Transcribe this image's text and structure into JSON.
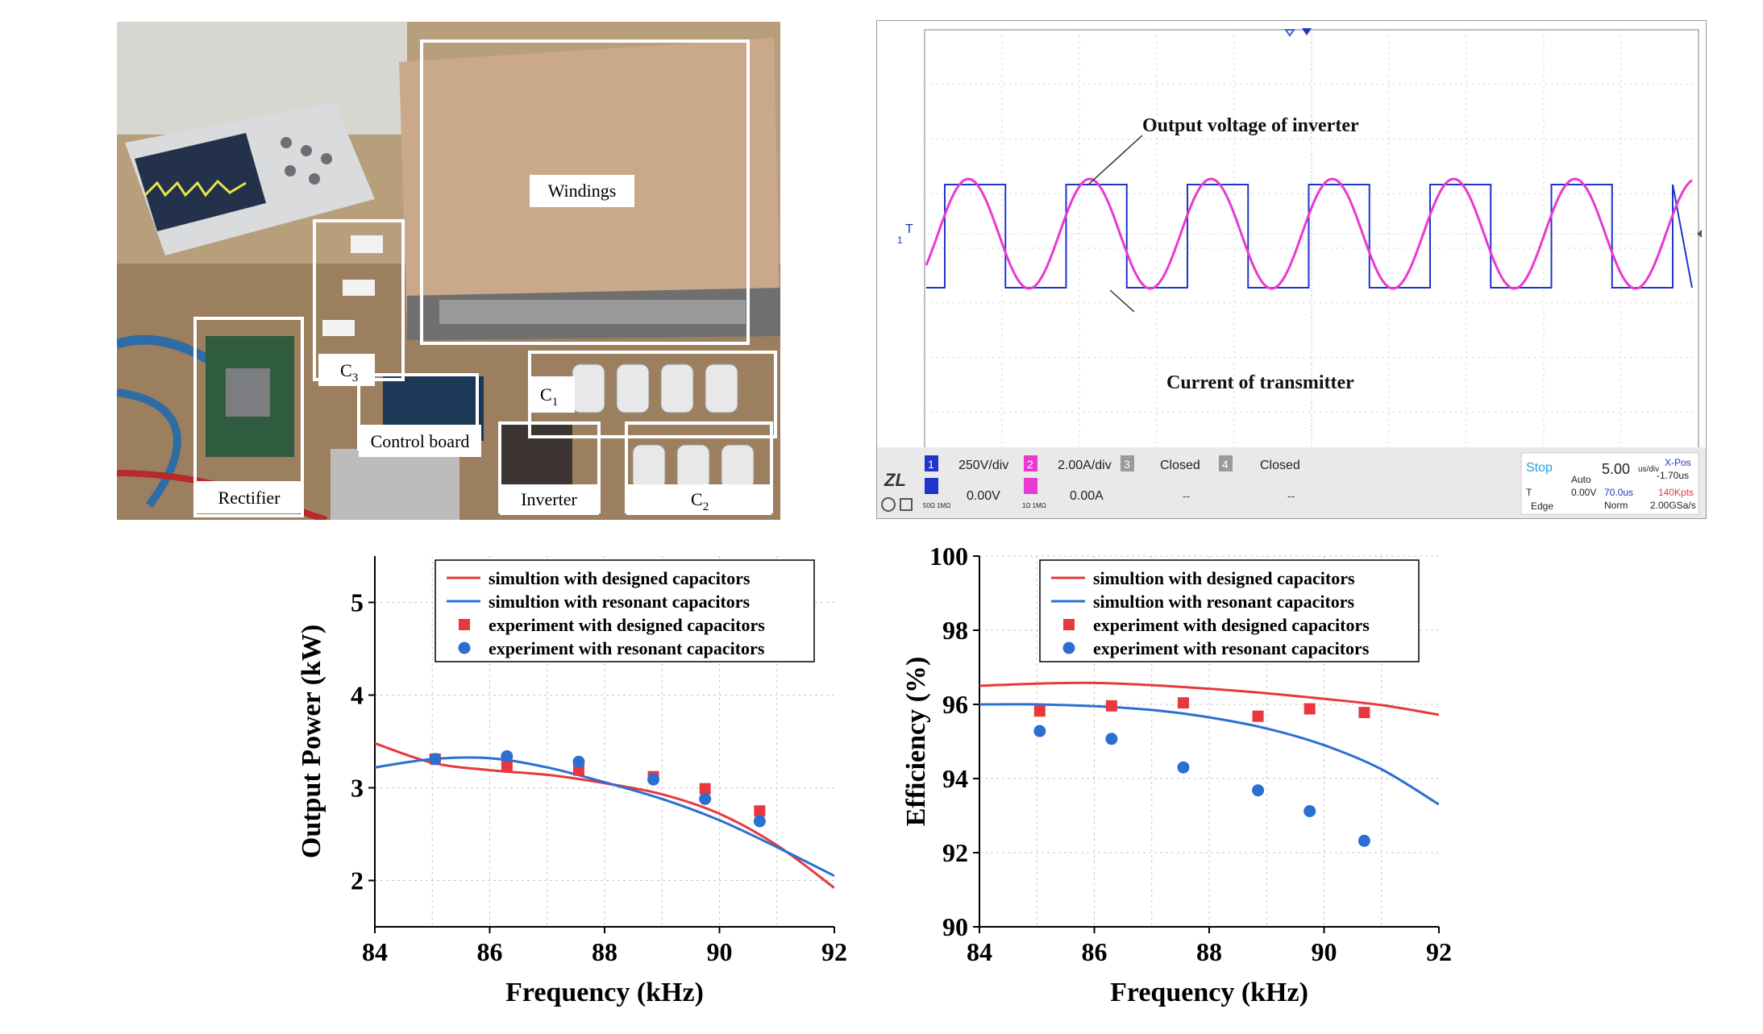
{
  "photo": {
    "labels": {
      "windings": "Windings",
      "c3": "C",
      "c3_sub": "3",
      "c1": "C",
      "c1_sub": "1",
      "c2": "C",
      "c2_sub": "2",
      "control_board": "Control board",
      "rectifier": "Rectifier",
      "inverter": "Inverter"
    }
  },
  "scope": {
    "annotations": {
      "voltage": "Output voltage of inverter",
      "current": "Current of transmitter"
    },
    "trigger_marker": "T",
    "ch1_marker": "1",
    "status": {
      "ch1_num": "1",
      "ch1_scale": "250V/div",
      "ch1_offset": "0.00V",
      "ch1_coupling": "50Ω\n1MΩ",
      "ch2_num": "2",
      "ch2_scale": "2.00A/div",
      "ch2_offset": "0.00A",
      "ch2_coupling": "1Ω\n1MΩ",
      "ch3_num": "3",
      "ch3_state": "Closed",
      "ch3_dash": "--",
      "ch4_num": "4",
      "ch4_state": "Closed",
      "ch4_dash": "--",
      "run_state": "Stop",
      "mode": "Auto",
      "trig_label": "T",
      "trig_level": "0.00V",
      "edge": "Edge",
      "timebase": "5.00",
      "timebase_unit": "us/div",
      "xpos_label": "X-Pos",
      "xpos_value": "-1.70us",
      "delay": "70.0us",
      "points": "140Kpts",
      "acq": "Norm",
      "rate": "2.00GSa/s"
    },
    "colors": {
      "ch1": "#1f35c9",
      "ch2": "#e83ad0",
      "grid": "#c8c8c8"
    }
  },
  "chart_data": [
    {
      "type": "line",
      "xlabel": "Frequency (kHz)",
      "ylabel": "Output Power (kW)",
      "xlim": [
        84,
        92
      ],
      "ylim": [
        1.5,
        5.5
      ],
      "xticks": [
        "84",
        "86",
        "88",
        "90",
        "92"
      ],
      "yticks": [
        "2",
        "3",
        "4",
        "5"
      ],
      "legend_position": "top-right",
      "series": [
        {
          "name": "simultion with designed capacitors",
          "kind": "line",
          "color": "#e8383d",
          "x": [
            84,
            85,
            86,
            87,
            88,
            89,
            90,
            91,
            92
          ],
          "y": [
            3.48,
            3.27,
            3.19,
            3.14,
            3.05,
            2.93,
            2.72,
            2.38,
            1.92
          ]
        },
        {
          "name": "simultion with resonant capacitors",
          "kind": "line",
          "color": "#2a6fd1",
          "x": [
            84,
            85,
            86,
            87,
            88,
            89,
            90,
            91,
            92
          ],
          "y": [
            3.22,
            3.31,
            3.32,
            3.22,
            3.06,
            2.88,
            2.65,
            2.36,
            2.05
          ]
        },
        {
          "name": "experiment with designed capacitors",
          "kind": "square",
          "color": "#e8383d",
          "x": [
            85.05,
            86.3,
            87.55,
            88.85,
            89.75,
            90.7
          ],
          "y": [
            3.31,
            3.24,
            3.19,
            3.12,
            2.99,
            2.75
          ]
        },
        {
          "name": "experiment with resonant capacitors",
          "kind": "circle",
          "color": "#2a6fd1",
          "x": [
            85.05,
            86.3,
            87.55,
            88.85,
            89.75,
            90.7
          ],
          "y": [
            3.31,
            3.34,
            3.28,
            3.09,
            2.88,
            2.64
          ]
        }
      ]
    },
    {
      "type": "line",
      "xlabel": "Frequency (kHz)",
      "ylabel": "Efficiency (%)",
      "xlim": [
        84,
        92
      ],
      "ylim": [
        90,
        100
      ],
      "xticks": [
        "84",
        "86",
        "88",
        "90",
        "92"
      ],
      "yticks": [
        "90",
        "92",
        "94",
        "96",
        "98",
        "100"
      ],
      "legend_position": "top-right",
      "series": [
        {
          "name": "simultion with designed capacitors",
          "kind": "line",
          "color": "#e8383d",
          "x": [
            84,
            85,
            86,
            87,
            88,
            89,
            90,
            91,
            92
          ],
          "y": [
            96.5,
            96.56,
            96.58,
            96.52,
            96.42,
            96.3,
            96.15,
            95.98,
            95.72
          ]
        },
        {
          "name": "simultion with resonant capacitors",
          "kind": "line",
          "color": "#2a6fd1",
          "x": [
            84,
            85,
            86,
            87,
            88,
            89,
            90,
            91,
            92
          ],
          "y": [
            96.0,
            96.0,
            95.95,
            95.85,
            95.65,
            95.35,
            94.9,
            94.25,
            93.3
          ]
        },
        {
          "name": "experiment with designed capacitors",
          "kind": "square",
          "color": "#e8383d",
          "x": [
            85.05,
            86.3,
            87.55,
            88.85,
            89.75,
            90.7
          ],
          "y": [
            95.82,
            95.96,
            96.04,
            95.68,
            95.88,
            95.78
          ]
        },
        {
          "name": "experiment with resonant capacitors",
          "kind": "circle",
          "color": "#2a6fd1",
          "x": [
            85.05,
            86.3,
            87.55,
            88.85,
            89.75,
            90.7
          ],
          "y": [
            95.28,
            95.07,
            94.3,
            93.68,
            93.12,
            92.32
          ]
        }
      ]
    }
  ]
}
